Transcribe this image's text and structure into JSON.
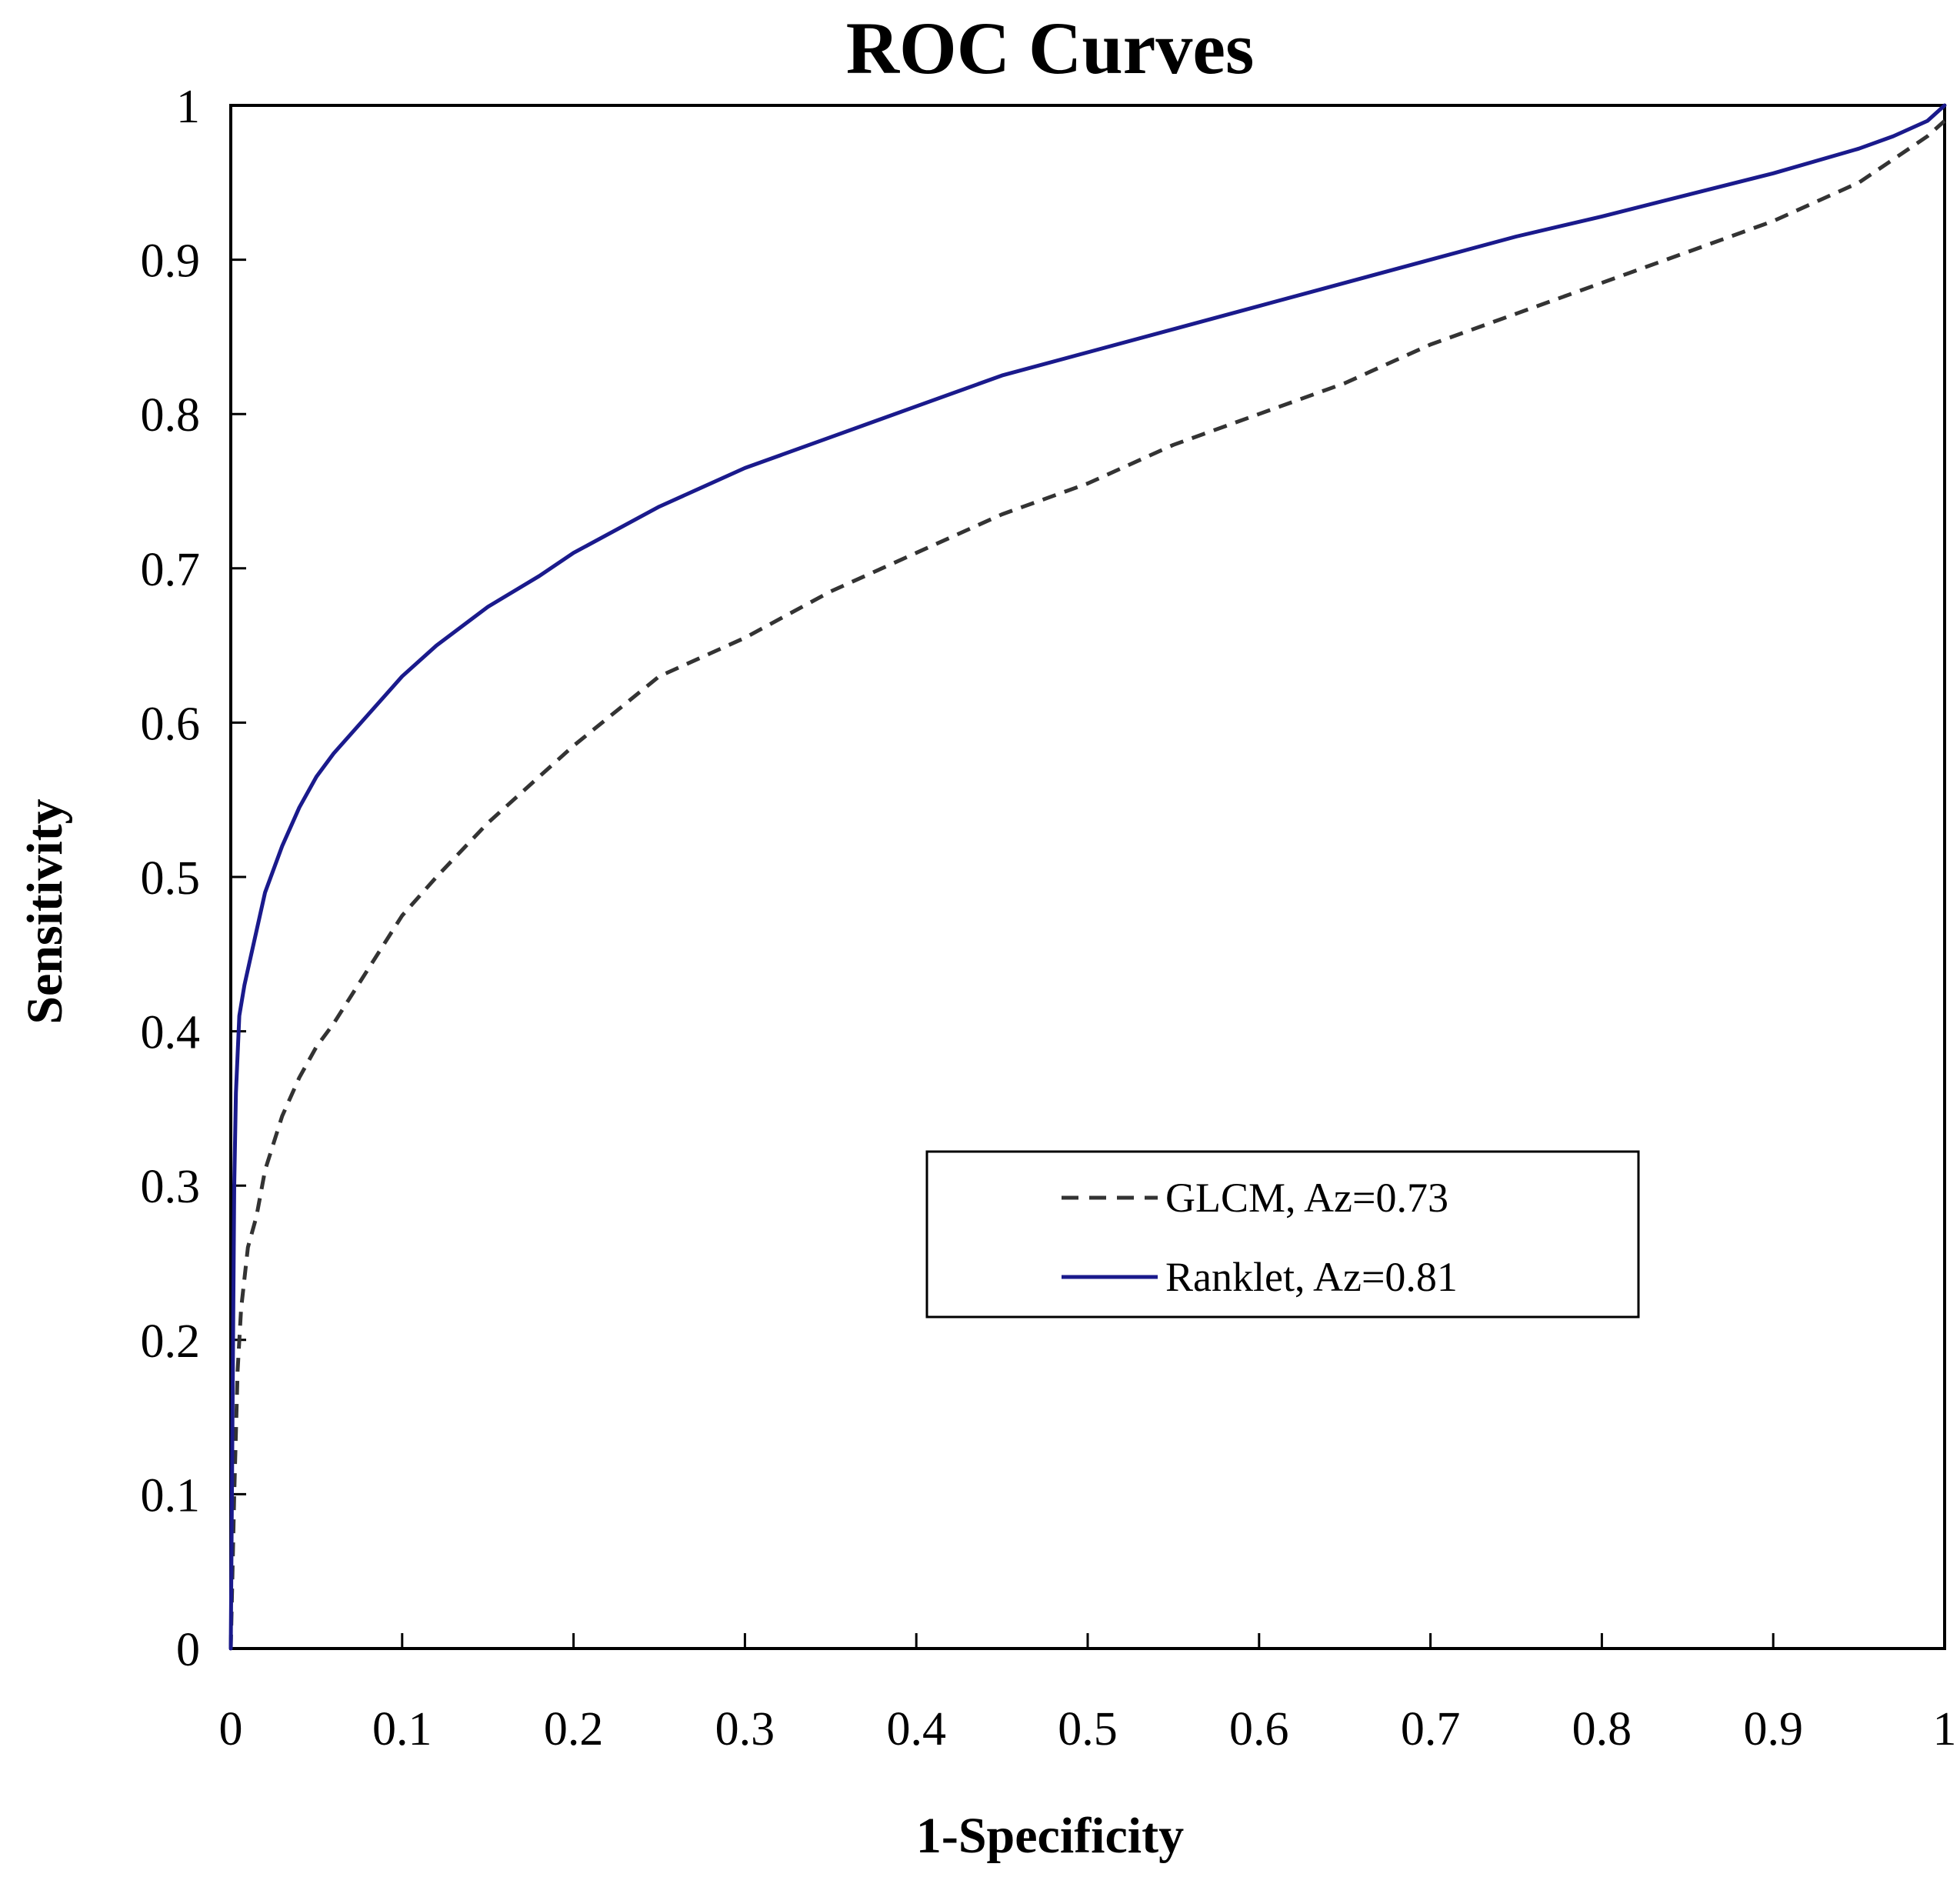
{
  "chart_data": {
    "type": "line",
    "title": "ROC Curves",
    "xlabel": "1-Specificity",
    "ylabel": "Sensitivity",
    "xlim": [
      0,
      1
    ],
    "ylim": [
      0,
      1
    ],
    "x_ticks": [
      "0",
      "0.1",
      "0.2",
      "0.3",
      "0.4",
      "0.5",
      "0.6",
      "0.7",
      "0.8",
      "0.9",
      "1"
    ],
    "y_ticks": [
      "0",
      "0.1",
      "0.2",
      "0.3",
      "0.4",
      "0.5",
      "0.6",
      "0.7",
      "0.8",
      "0.9",
      "1"
    ],
    "grid": false,
    "legend_position": "lower-right",
    "series": [
      {
        "name": "GLCM, Az=0.73",
        "color": "#333333",
        "style": "dashed",
        "x": [
          0,
          0.002,
          0.004,
          0.006,
          0.01,
          0.015,
          0.02,
          0.03,
          0.04,
          0.05,
          0.06,
          0.08,
          0.1,
          0.12,
          0.15,
          0.18,
          0.2,
          0.25,
          0.3,
          0.35,
          0.4,
          0.45,
          0.5,
          0.55,
          0.6,
          0.65,
          0.7,
          0.75,
          0.8,
          0.85,
          0.9,
          0.95,
          0.97,
          0.99,
          1
        ],
        "y": [
          0,
          0.1,
          0.18,
          0.22,
          0.26,
          0.28,
          0.31,
          0.345,
          0.37,
          0.39,
          0.405,
          0.44,
          0.475,
          0.5,
          0.535,
          0.565,
          0.585,
          0.63,
          0.655,
          0.685,
          0.71,
          0.735,
          0.755,
          0.78,
          0.8,
          0.82,
          0.845,
          0.865,
          0.885,
          0.905,
          0.925,
          0.95,
          0.965,
          0.98,
          0.99
        ]
      },
      {
        "name": "Ranklet, Az=0.81",
        "color": "#1a1a8c",
        "style": "solid",
        "x": [
          0,
          0.002,
          0.003,
          0.005,
          0.008,
          0.012,
          0.02,
          0.03,
          0.04,
          0.05,
          0.06,
          0.08,
          0.1,
          0.12,
          0.15,
          0.18,
          0.2,
          0.25,
          0.3,
          0.35,
          0.4,
          0.45,
          0.5,
          0.55,
          0.6,
          0.65,
          0.7,
          0.75,
          0.8,
          0.85,
          0.9,
          0.95,
          0.97,
          0.99,
          1
        ],
        "y": [
          0,
          0.3,
          0.36,
          0.41,
          0.43,
          0.45,
          0.49,
          0.52,
          0.545,
          0.565,
          0.58,
          0.605,
          0.63,
          0.65,
          0.675,
          0.695,
          0.71,
          0.74,
          0.765,
          0.785,
          0.805,
          0.825,
          0.84,
          0.855,
          0.87,
          0.885,
          0.9,
          0.915,
          0.928,
          0.942,
          0.956,
          0.972,
          0.98,
          0.99,
          1
        ]
      }
    ]
  }
}
